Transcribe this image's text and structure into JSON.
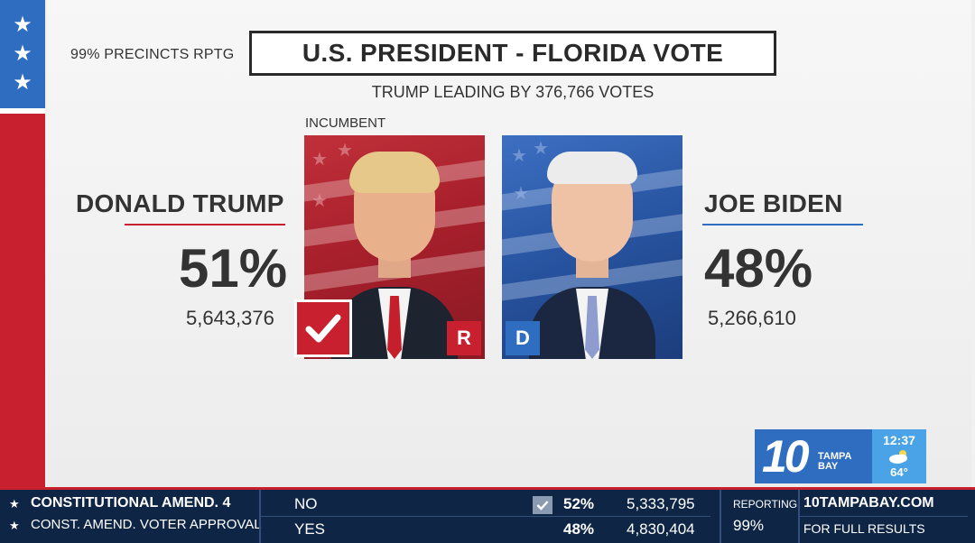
{
  "header": {
    "precincts": "99% PRECINCTS RPTG",
    "title": "U.S. PRESIDENT - FLORIDA VOTE",
    "leading": "TRUMP LEADING BY 376,766 VOTES",
    "incumbent_label": "INCUMBENT"
  },
  "candidates": {
    "republican": {
      "name": "DONALD TRUMP",
      "percent": "51%",
      "votes": "5,643,376",
      "party": "R",
      "winner": true,
      "color": "#c8202f"
    },
    "democrat": {
      "name": "JOE BIDEN",
      "percent": "48%",
      "votes": "5,266,610",
      "party": "D",
      "color": "#2f6dc0"
    }
  },
  "station": {
    "logo_number": "10",
    "logo_line1": "TAMPA",
    "logo_line2": "BAY",
    "time": "12:37",
    "temp": "64°",
    "weather_icon": "partly-cloudy-icon"
  },
  "ticker": {
    "race_title": "CONSTITUTIONAL AMEND. 4",
    "race_subtitle": "CONST. AMEND. VOTER APPROVAL",
    "options": [
      {
        "label": "NO",
        "percent": "52%",
        "votes": "5,333,795",
        "winner": true
      },
      {
        "label": "YES",
        "percent": "48%",
        "votes": "4,830,404",
        "winner": false
      }
    ],
    "reporting_label": "REPORTING",
    "reporting_value": "99%",
    "site": "10TAMPABAY.COM",
    "site_cta": "FOR FULL RESULTS"
  }
}
